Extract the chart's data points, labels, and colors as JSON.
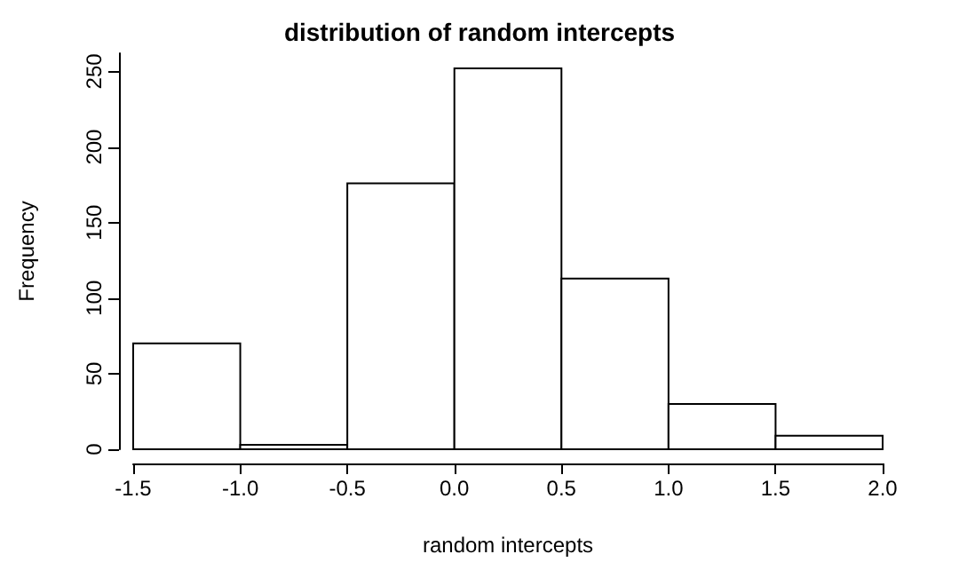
{
  "chart_data": {
    "type": "histogram",
    "title": "distribution of random intercepts",
    "xlabel": "random intercepts",
    "ylabel": "Frequency",
    "bins": [
      -1.5,
      -1.0,
      -0.5,
      0.0,
      0.5,
      1.0,
      1.5,
      2.0
    ],
    "values": [
      70,
      3,
      176,
      252,
      113,
      30,
      9
    ],
    "color": "#ffffff",
    "xlim": [
      -1.5,
      2.0
    ],
    "xticks": [
      {
        "value": -1.5,
        "label": "-1.5"
      },
      {
        "value": -1.0,
        "label": "-1.0"
      },
      {
        "value": -0.5,
        "label": "-0.5"
      },
      {
        "value": 0,
        "label": "0.0"
      },
      {
        "value": 0.5,
        "label": "0.5"
      },
      {
        "value": 1.0,
        "label": "1.0"
      },
      {
        "value": 1.5,
        "label": "1.5"
      },
      {
        "value": 2.0,
        "label": "2.0"
      }
    ],
    "ylim": [
      0,
      262
    ],
    "yticks": [
      0,
      50,
      100,
      150,
      200,
      250
    ],
    "grid": false
  }
}
